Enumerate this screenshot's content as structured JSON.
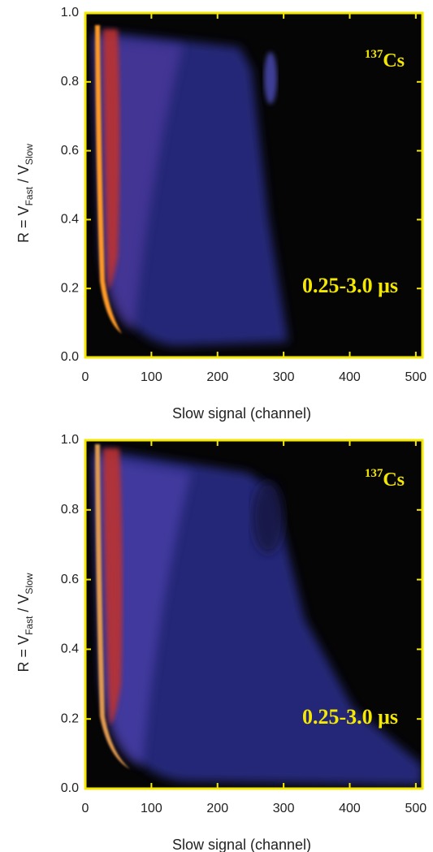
{
  "chart_data": [
    {
      "type": "heatmap",
      "xlabel": "Slow signal (channel)",
      "ylabel": [
        "R = V",
        "Fast",
        " / V",
        "Slow"
      ],
      "isotope": [
        "137",
        "Cs"
      ],
      "window": "0.25-3.0 μs",
      "xlim": [
        0,
        510
      ],
      "ylim": [
        0,
        1
      ],
      "xticks": [
        0,
        100,
        200,
        300,
        400,
        500
      ],
      "yticks": [
        {
          "value": 0,
          "label": "0.0"
        },
        {
          "value": 0.2,
          "label": "0.2"
        },
        {
          "value": 0.4,
          "label": "0.4"
        },
        {
          "value": 0.6,
          "label": "0.6"
        },
        {
          "value": 0.8,
          "label": "0.8"
        },
        {
          "value": 1,
          "label": "1.0"
        }
      ]
    },
    {
      "type": "heatmap",
      "xlabel": "Slow signal (channel)",
      "ylabel": [
        "R = V",
        "Fast",
        " / V",
        "Slow"
      ],
      "isotope": [
        "137",
        "Cs"
      ],
      "window": "0.25-3.0 μs",
      "xlim": [
        0,
        510
      ],
      "ylim": [
        0,
        1
      ],
      "xticks": [
        0,
        100,
        200,
        300,
        400,
        500
      ],
      "yticks": [
        {
          "value": 0,
          "label": "0.0"
        },
        {
          "value": 0.2,
          "label": "0.2"
        },
        {
          "value": 0.4,
          "label": "0.4"
        },
        {
          "value": 0.6,
          "label": "0.6"
        },
        {
          "value": 0.8,
          "label": "0.8"
        },
        {
          "value": 1,
          "label": "1.0"
        }
      ]
    }
  ]
}
